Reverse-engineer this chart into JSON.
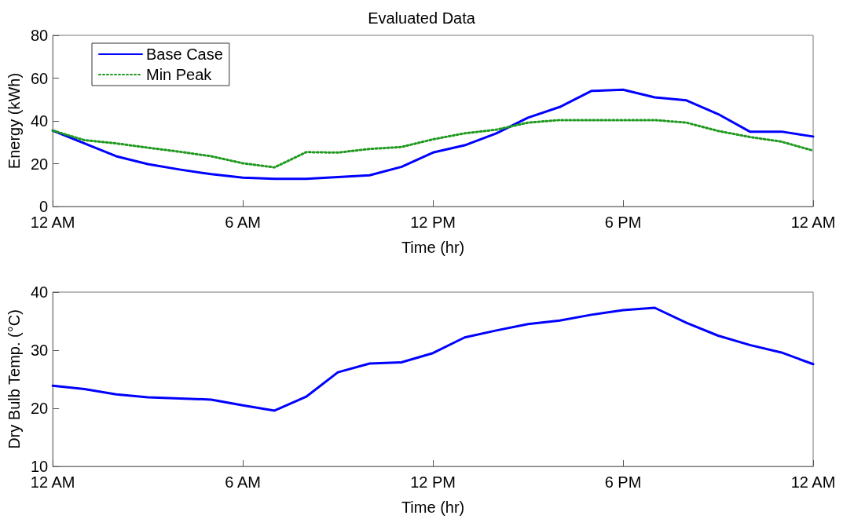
{
  "chart_data": [
    {
      "type": "line",
      "title": "Evaluated Data",
      "xlabel": "Time (hr)",
      "ylabel": "Energy (kWh)",
      "categories": [
        "12 AM",
        null,
        null,
        null,
        null,
        null,
        "6 AM",
        null,
        null,
        null,
        null,
        null,
        "12 PM",
        null,
        null,
        null,
        null,
        null,
        "6 PM",
        null,
        null,
        null,
        null,
        null,
        "12 AM"
      ],
      "series": [
        {
          "name": "Base Case",
          "color": "#0000ff",
          "line_style": "solid",
          "values": [
            35.5,
            29.5,
            23.5,
            19.8,
            17.3,
            15.1,
            13.5,
            12.9,
            12.9,
            13.8,
            14.6,
            18.5,
            25.2,
            28.6,
            34.2,
            41.5,
            46.5,
            54.0,
            54.6,
            51.0,
            49.6,
            43.2,
            35.0,
            35.0,
            32.7
          ]
        },
        {
          "name": "Min Peak",
          "color": "#1f9a1f",
          "line_style": "dotted",
          "values": [
            35.5,
            31.0,
            29.5,
            27.5,
            25.6,
            23.5,
            20.2,
            18.3,
            25.4,
            25.2,
            26.9,
            27.8,
            31.4,
            34.2,
            35.9,
            39.2,
            40.4,
            40.4,
            40.4,
            40.4,
            39.2,
            35.3,
            32.5,
            30.3,
            26.1
          ]
        }
      ],
      "ylim": [
        0,
        80
      ],
      "yticks": [
        0,
        20,
        40,
        60,
        80
      ],
      "grid": false,
      "legend": "top left",
      "marker": "none"
    },
    {
      "type": "line",
      "xlabel": "Time (hr)",
      "ylabel": "Dry Bulb Temp. (°C)",
      "categories": [
        "12 AM",
        null,
        null,
        null,
        null,
        null,
        "6 AM",
        null,
        null,
        null,
        null,
        null,
        "12 PM",
        null,
        null,
        null,
        null,
        null,
        "6 PM",
        null,
        null,
        null,
        null,
        null,
        "12 AM"
      ],
      "series": [
        {
          "color": "#0000ff",
          "line_style": "solid",
          "values": [
            23.9,
            23.3,
            22.4,
            21.9,
            21.7,
            21.5,
            20.5,
            19.6,
            22.0,
            26.2,
            27.7,
            27.9,
            29.5,
            32.2,
            33.4,
            34.5,
            35.1,
            36.1,
            36.9,
            37.3,
            34.7,
            32.5,
            30.9,
            29.6,
            27.6
          ]
        }
      ],
      "ylim": [
        10,
        40
      ],
      "yticks": [
        10,
        20,
        30,
        40
      ],
      "grid": false,
      "legend": false,
      "marker": "none"
    }
  ]
}
